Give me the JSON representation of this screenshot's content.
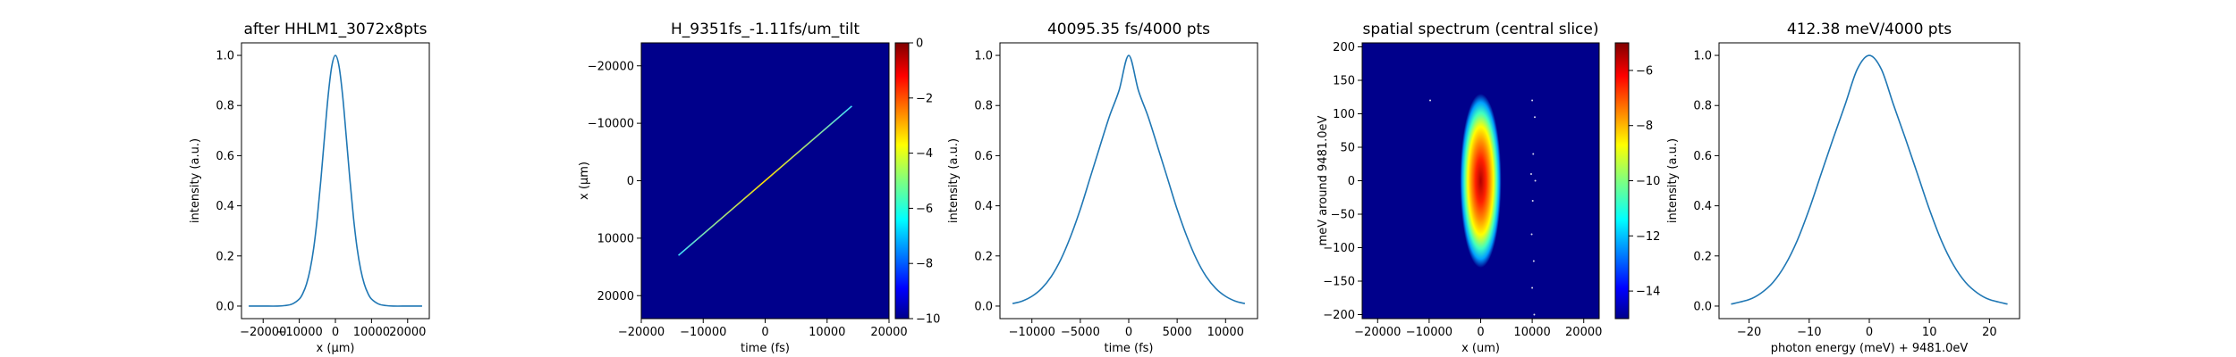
{
  "chart_data": [
    {
      "type": "line",
      "title": "after HHLM1_3072x8pts",
      "xlabel": "x (μm)",
      "ylabel": "intensity (a.u.)",
      "xlim": [
        -26000,
        26000
      ],
      "ylim": [
        -0.05,
        1.05
      ],
      "xticks": [
        -20000,
        -10000,
        0,
        10000,
        20000
      ],
      "xtick_labels": [
        "−20000",
        "−10000",
        "0",
        "10000",
        "20000"
      ],
      "yticks": [
        0.0,
        0.2,
        0.4,
        0.6,
        0.8,
        1.0
      ],
      "ytick_labels": [
        "0.0",
        "0.2",
        "0.4",
        "0.6",
        "0.8",
        "1.0"
      ],
      "series": [
        {
          "color": "#1f77b4",
          "x": [
            -24000,
            -20000,
            -16000,
            -14000,
            -12000,
            -10000,
            -9000,
            -8000,
            -7000,
            -6000,
            -5000,
            -4000,
            -3000,
            -2000,
            -1000,
            0,
            1000,
            2000,
            3000,
            4000,
            5000,
            6000,
            7000,
            8000,
            9000,
            10000,
            12000,
            14000,
            16000,
            20000,
            24000
          ],
          "y": [
            0.0,
            0.0,
            0.0,
            0.002,
            0.008,
            0.028,
            0.051,
            0.088,
            0.146,
            0.232,
            0.354,
            0.507,
            0.677,
            0.84,
            0.957,
            1.0,
            0.957,
            0.84,
            0.677,
            0.507,
            0.354,
            0.232,
            0.146,
            0.088,
            0.051,
            0.028,
            0.008,
            0.002,
            0.0,
            0.0,
            0.0
          ]
        }
      ]
    },
    {
      "type": "heatmap",
      "title": "H_9351fs_-1.11fs/um_tilt",
      "xlabel": "time (fs)",
      "ylabel": "x (μm)",
      "xlim": [
        -20000,
        20000
      ],
      "ylim": [
        -24000,
        24000
      ],
      "y_inverted": true,
      "xticks": [
        -20000,
        -10000,
        0,
        10000,
        20000
      ],
      "xtick_labels": [
        "−20000",
        "−10000",
        "0",
        "10000",
        "20000"
      ],
      "yticks": [
        -20000,
        -10000,
        0,
        10000,
        20000
      ],
      "ytick_labels": [
        "−20000",
        "−10000",
        "0",
        "10000",
        "20000"
      ],
      "colormap": "jet",
      "background": "#00008b",
      "feature": {
        "kind": "tilted line",
        "from": [
          -14000,
          13000
        ],
        "to": [
          14000,
          -13000
        ],
        "colors": [
          "#40e0ff",
          "#ffe000",
          "#40e0ff"
        ]
      },
      "colorbar": {
        "range": [
          -10,
          0
        ],
        "ticks": [
          0,
          -2,
          -4,
          -6,
          -8,
          -10
        ],
        "tick_labels": [
          "0",
          "−2",
          "−4",
          "−6",
          "−8",
          "−10"
        ]
      }
    },
    {
      "type": "line",
      "title": "40095.35 fs/4000 pts",
      "xlabel": "time (fs)",
      "ylabel": "intensity (a.u.)",
      "xlim": [
        -13300,
        13300
      ],
      "ylim": [
        -0.05,
        1.05
      ],
      "xticks": [
        -10000,
        -5000,
        0,
        5000,
        10000
      ],
      "xtick_labels": [
        "−10000",
        "−5000",
        "0",
        "5000",
        "10000"
      ],
      "yticks": [
        0.0,
        0.2,
        0.4,
        0.6,
        0.8,
        1.0
      ],
      "ytick_labels": [
        "0.0",
        "0.2",
        "0.4",
        "0.6",
        "0.8",
        "1.0"
      ],
      "series": [
        {
          "color": "#1f77b4",
          "x": [
            -12000,
            -11000,
            -10000,
            -9000,
            -8000,
            -7000,
            -6000,
            -5000,
            -4000,
            -3000,
            -2000,
            -1000,
            0,
            1000,
            2000,
            3000,
            4000,
            5000,
            6000,
            7000,
            8000,
            9000,
            10000,
            11000,
            12000
          ],
          "y": [
            0.01,
            0.02,
            0.039,
            0.07,
            0.118,
            0.187,
            0.278,
            0.386,
            0.51,
            0.634,
            0.756,
            0.86,
            1.0,
            0.86,
            0.756,
            0.634,
            0.51,
            0.386,
            0.278,
            0.187,
            0.118,
            0.07,
            0.039,
            0.02,
            0.01
          ]
        }
      ]
    },
    {
      "type": "heatmap",
      "title": "spatial spectrum (central slice)",
      "xlabel": "x (um)",
      "ylabel": "meV around 9481.0eV",
      "xlim": [
        -23000,
        23000
      ],
      "ylim": [
        -206,
        206
      ],
      "xticks": [
        -20000,
        -10000,
        0,
        10000,
        20000
      ],
      "xtick_labels": [
        "−20000",
        "−10000",
        "0",
        "10000",
        "20000"
      ],
      "yticks": [
        -200,
        -150,
        -100,
        -50,
        0,
        50,
        100,
        150,
        200
      ],
      "ytick_labels": [
        "−200",
        "−150",
        "−100",
        "−50",
        "0",
        "50",
        "100",
        "150",
        "200"
      ],
      "colormap": "jet",
      "background": "#00008b",
      "feature": {
        "kind": "gaussian blob",
        "center": [
          0,
          0
        ],
        "x_half_width": 4000,
        "y_half_width": 130
      },
      "colorbar": {
        "range": [
          -15,
          -5
        ],
        "ticks": [
          -6,
          -8,
          -10,
          -12,
          -14
        ],
        "tick_labels": [
          "−6",
          "−8",
          "−10",
          "−12",
          "−14"
        ]
      }
    },
    {
      "type": "line",
      "title": "412.38 meV/4000 pts",
      "xlabel": "photon energy (meV) + 9481.0eV",
      "ylabel": "intensity (a.u.)",
      "xlim": [
        -25,
        25
      ],
      "ylim": [
        -0.05,
        1.05
      ],
      "xticks": [
        -20,
        -10,
        0,
        10,
        20
      ],
      "xtick_labels": [
        "−20",
        "−10",
        "0",
        "10",
        "20"
      ],
      "yticks": [
        0.0,
        0.2,
        0.4,
        0.6,
        0.8,
        1.0
      ],
      "ytick_labels": [
        "0.0",
        "0.2",
        "0.4",
        "0.6",
        "0.8",
        "1.0"
      ],
      "series": [
        {
          "color": "#1f77b4",
          "x": [
            -23,
            -20,
            -18,
            -16,
            -14,
            -12,
            -10,
            -8,
            -6,
            -4,
            -2,
            0,
            2,
            4,
            6,
            8,
            10,
            12,
            14,
            16,
            18,
            20,
            23
          ],
          "y": [
            0.008,
            0.026,
            0.052,
            0.095,
            0.164,
            0.261,
            0.386,
            0.528,
            0.669,
            0.805,
            0.945,
            1.0,
            0.945,
            0.805,
            0.669,
            0.528,
            0.386,
            0.261,
            0.164,
            0.095,
            0.052,
            0.026,
            0.008
          ]
        }
      ]
    }
  ]
}
